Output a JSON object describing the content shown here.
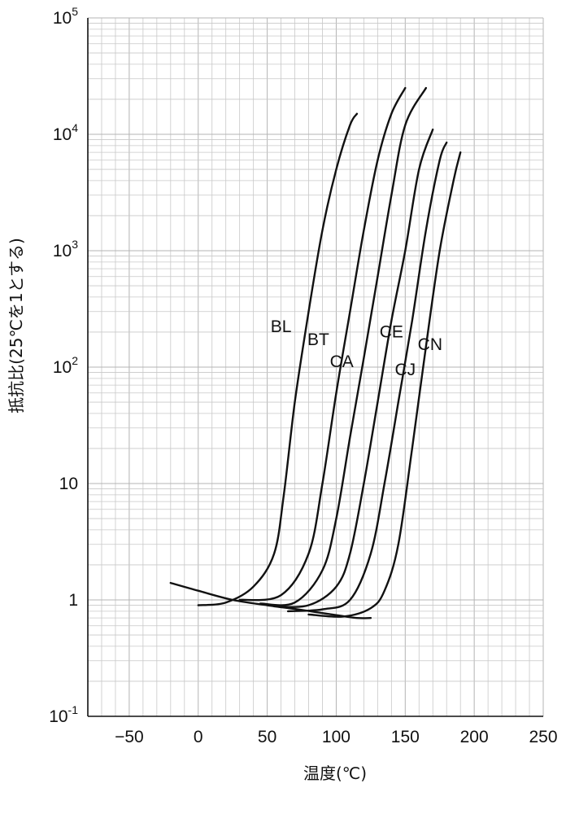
{
  "chart_data": {
    "type": "line",
    "x_scale": "linear",
    "y_scale": "log",
    "xlim": [
      -80,
      250
    ],
    "ylim": [
      0.1,
      100000
    ],
    "grid": true,
    "xlabel": "温度(℃)",
    "ylabel": "抵抗比(25℃を1とする)",
    "x_ticks": [
      {
        "value": -50,
        "label": "−50"
      },
      {
        "value": 0,
        "label": "0"
      },
      {
        "value": 50,
        "label": "50"
      },
      {
        "value": 100,
        "label": "100"
      },
      {
        "value": 150,
        "label": "150"
      },
      {
        "value": 200,
        "label": "200"
      },
      {
        "value": 250,
        "label": "250"
      }
    ],
    "y_ticks": [
      {
        "value": 0.1,
        "base": "10",
        "exp": "-1"
      },
      {
        "value": 1,
        "base": "1",
        "exp": ""
      },
      {
        "value": 10,
        "base": "10",
        "exp": ""
      },
      {
        "value": 100,
        "base": "10",
        "exp": "2"
      },
      {
        "value": 1000,
        "base": "10",
        "exp": "3"
      },
      {
        "value": 10000,
        "base": "10",
        "exp": "4"
      },
      {
        "value": 100000,
        "base": "10",
        "exp": "5"
      }
    ],
    "baseline": [
      [
        -20,
        1.4
      ],
      [
        0,
        1.2
      ],
      [
        25,
        1.0
      ],
      [
        50,
        0.9
      ],
      [
        75,
        0.82
      ],
      [
        100,
        0.74
      ],
      [
        115,
        0.7
      ],
      [
        125,
        0.7
      ]
    ],
    "series": [
      {
        "name": "BL",
        "label_at": [
          60,
          200
        ],
        "points": [
          [
            0,
            0.9
          ],
          [
            20,
            0.95
          ],
          [
            40,
            1.3
          ],
          [
            55,
            2.5
          ],
          [
            62,
            8
          ],
          [
            70,
            50
          ],
          [
            80,
            300
          ],
          [
            90,
            1500
          ],
          [
            100,
            5000
          ],
          [
            110,
            12000
          ],
          [
            115,
            15000
          ]
        ]
      },
      {
        "name": "BT",
        "label_at": [
          87,
          155
        ],
        "points": [
          [
            30,
            1.0
          ],
          [
            60,
            1.1
          ],
          [
            80,
            2.5
          ],
          [
            90,
            10
          ],
          [
            100,
            60
          ],
          [
            110,
            300
          ],
          [
            120,
            1500
          ],
          [
            130,
            6000
          ],
          [
            140,
            15000
          ],
          [
            150,
            25000
          ]
        ]
      },
      {
        "name": "CA",
        "label_at": [
          104,
          100
        ],
        "points": [
          [
            45,
            0.93
          ],
          [
            70,
            0.95
          ],
          [
            90,
            1.8
          ],
          [
            100,
            5
          ],
          [
            110,
            25
          ],
          [
            120,
            120
          ],
          [
            130,
            600
          ],
          [
            140,
            3000
          ],
          [
            150,
            12000
          ],
          [
            165,
            25000
          ]
        ]
      },
      {
        "name": "CE",
        "label_at": [
          140,
          180
        ],
        "points": [
          [
            55,
            0.88
          ],
          [
            80,
            0.9
          ],
          [
            100,
            1.3
          ],
          [
            110,
            2.5
          ],
          [
            120,
            10
          ],
          [
            130,
            50
          ],
          [
            140,
            250
          ],
          [
            150,
            1000
          ],
          [
            160,
            5000
          ],
          [
            170,
            11000
          ]
        ]
      },
      {
        "name": "CJ",
        "label_at": [
          150,
          85
        ],
        "points": [
          [
            65,
            0.8
          ],
          [
            90,
            0.83
          ],
          [
            110,
            1.0
          ],
          [
            125,
            2.5
          ],
          [
            135,
            10
          ],
          [
            145,
            50
          ],
          [
            155,
            250
          ],
          [
            165,
            1500
          ],
          [
            175,
            6000
          ],
          [
            180,
            8500
          ]
        ]
      },
      {
        "name": "CN",
        "label_at": [
          168,
          140
        ],
        "points": [
          [
            80,
            0.75
          ],
          [
            105,
            0.72
          ],
          [
            125,
            0.85
          ],
          [
            135,
            1.2
          ],
          [
            145,
            3
          ],
          [
            155,
            20
          ],
          [
            165,
            150
          ],
          [
            175,
            1000
          ],
          [
            185,
            4000
          ],
          [
            190,
            7000
          ]
        ]
      }
    ]
  }
}
